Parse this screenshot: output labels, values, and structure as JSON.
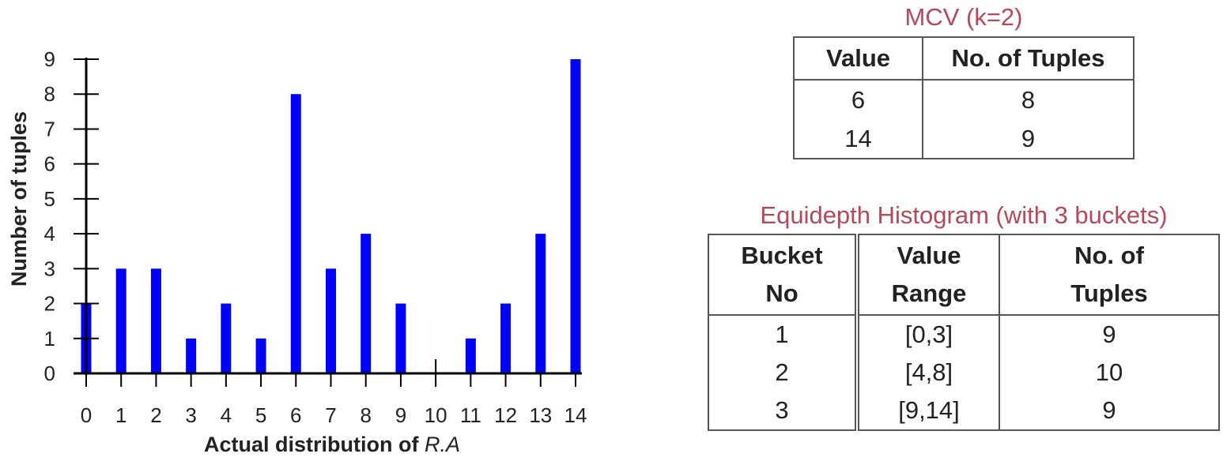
{
  "chart_data": {
    "type": "bar",
    "categories": [
      "0",
      "1",
      "2",
      "3",
      "4",
      "5",
      "6",
      "7",
      "8",
      "9",
      "10",
      "11",
      "12",
      "13",
      "14"
    ],
    "values": [
      2,
      3,
      3,
      1,
      2,
      1,
      8,
      3,
      4,
      2,
      0,
      1,
      2,
      4,
      9
    ],
    "xlabel": "Actual distribution of R.A",
    "xlabel_prefix": "Actual distribution of ",
    "xlabel_italic": "R.A",
    "ylabel": "Number of tuples",
    "yticks": [
      "0",
      "1",
      "2",
      "3",
      "4",
      "5",
      "6",
      "7",
      "8",
      "9"
    ],
    "ylim": [
      0,
      9
    ],
    "grid": false,
    "bar_color": "#0000ff"
  },
  "mcv": {
    "caption": "MCV (k=2)",
    "headers": [
      "Value",
      "No. of Tuples"
    ],
    "rows": [
      [
        "6",
        "8"
      ],
      [
        "14",
        "9"
      ]
    ]
  },
  "histogram": {
    "caption": "Equidepth Histogram (with 3 buckets)",
    "headers": [
      [
        "Bucket",
        "No"
      ],
      [
        "Value",
        "Range"
      ],
      [
        "No. of",
        "Tuples"
      ]
    ],
    "rows": [
      [
        "1",
        "[0,3]",
        "9"
      ],
      [
        "2",
        "[4,8]",
        "10"
      ],
      [
        "3",
        "[9,14]",
        "9"
      ]
    ]
  },
  "caption_color": "#b5485a"
}
